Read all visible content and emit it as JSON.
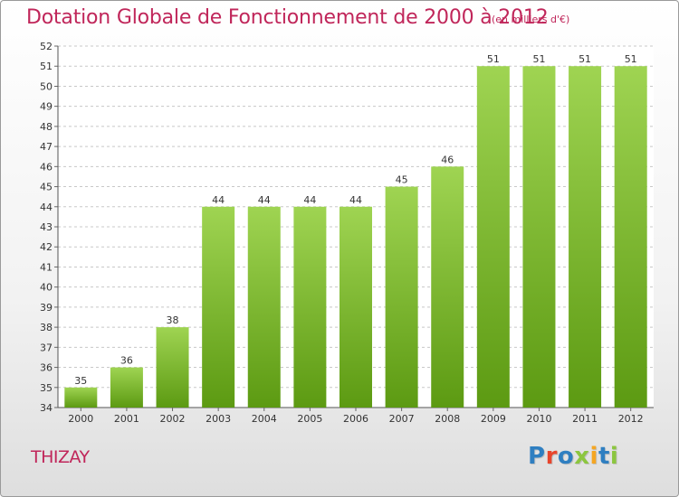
{
  "header": {
    "title": "Dotation Globale de Fonctionnement de 2000 à 2012",
    "subtitle": "(en milliers d'€)"
  },
  "footer": {
    "commune": "THIZAY",
    "logo": "Proxiti"
  },
  "colors": {
    "accent": "#c0265a",
    "bar_light": "#9bd14d",
    "bar_dark": "#5e9c14",
    "logo_letters": [
      "#2f7fc1",
      "#e8452c",
      "#2f7fc1",
      "#8cc63f",
      "#f5a623",
      "#2f7fc1",
      "#8cc63f"
    ]
  },
  "chart_data": {
    "type": "bar",
    "title": "Dotation Globale de Fonctionnement de 2000 à 2012",
    "subtitle": "(en milliers d'€)",
    "xlabel": "",
    "ylabel": "",
    "categories": [
      "2000",
      "2001",
      "2002",
      "2003",
      "2004",
      "2005",
      "2006",
      "2007",
      "2008",
      "2009",
      "2010",
      "2011",
      "2012"
    ],
    "values": [
      35,
      36,
      38,
      44,
      44,
      44,
      44,
      45,
      46,
      51,
      51,
      51,
      51
    ],
    "data_labels": [
      "35",
      "36",
      "38",
      "44",
      "44",
      "44",
      "44",
      "45",
      "46",
      "51",
      "51",
      "51",
      "51"
    ],
    "ylim": [
      34,
      52
    ],
    "yticks": [
      34,
      35,
      36,
      37,
      38,
      39,
      40,
      41,
      42,
      43,
      44,
      45,
      46,
      47,
      48,
      49,
      50,
      51,
      52
    ],
    "grid": "horizontal-dashed",
    "legend": "none"
  }
}
